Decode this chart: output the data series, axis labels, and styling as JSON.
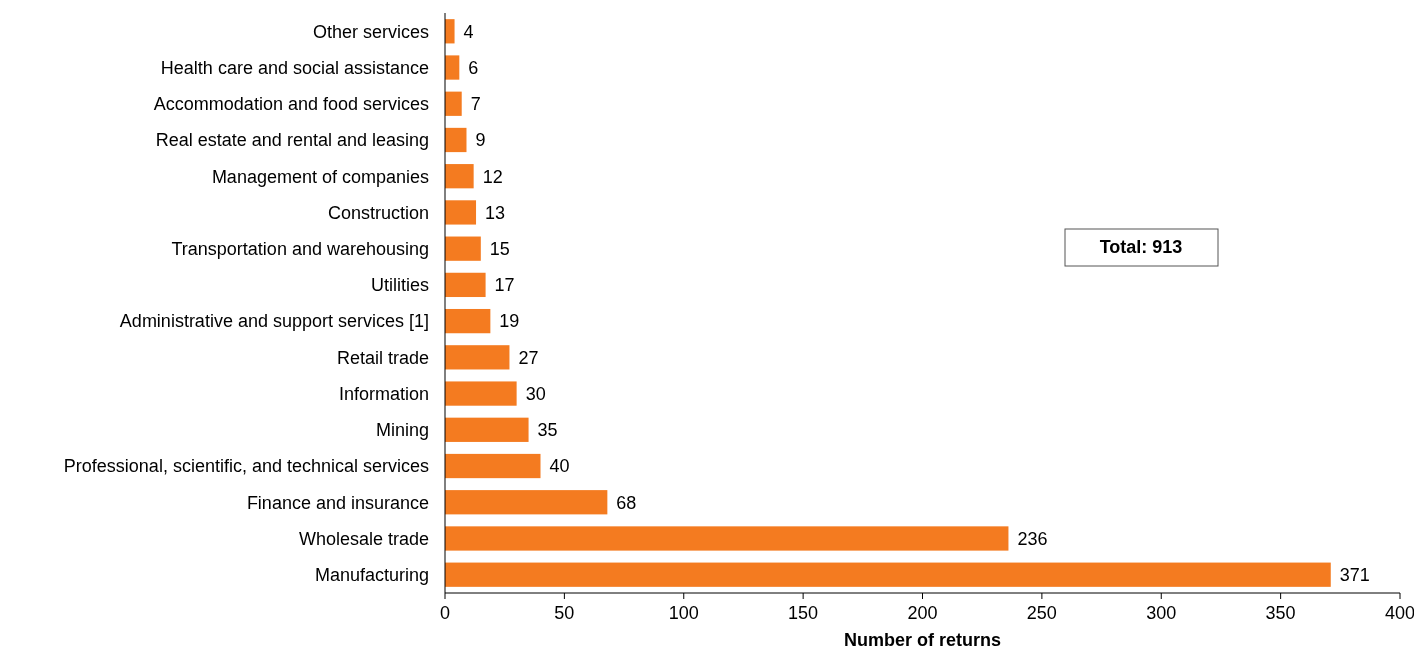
{
  "chart_data": {
    "type": "bar",
    "orientation": "horizontal",
    "categories": [
      "Other services",
      "Health care and social assistance",
      "Accommodation and food services",
      "Real estate and rental and leasing",
      "Management of companies",
      "Construction",
      "Transportation and warehousing",
      "Utilities",
      "Administrative and support services [1]",
      "Retail trade",
      "Information",
      "Mining",
      "Professional, scientific, and technical services",
      "Finance and insurance",
      "Wholesale trade",
      "Manufacturing"
    ],
    "values": [
      4,
      6,
      7,
      9,
      12,
      13,
      15,
      17,
      19,
      27,
      30,
      35,
      40,
      68,
      236,
      371
    ],
    "color": "#f47b20",
    "xlim": [
      0,
      400
    ],
    "xticks": [
      0,
      50,
      100,
      150,
      200,
      250,
      300,
      350,
      400
    ],
    "xlabel": "Number of returns",
    "data_labels": true,
    "grid": false,
    "annotations": [
      "Total: 913"
    ]
  }
}
